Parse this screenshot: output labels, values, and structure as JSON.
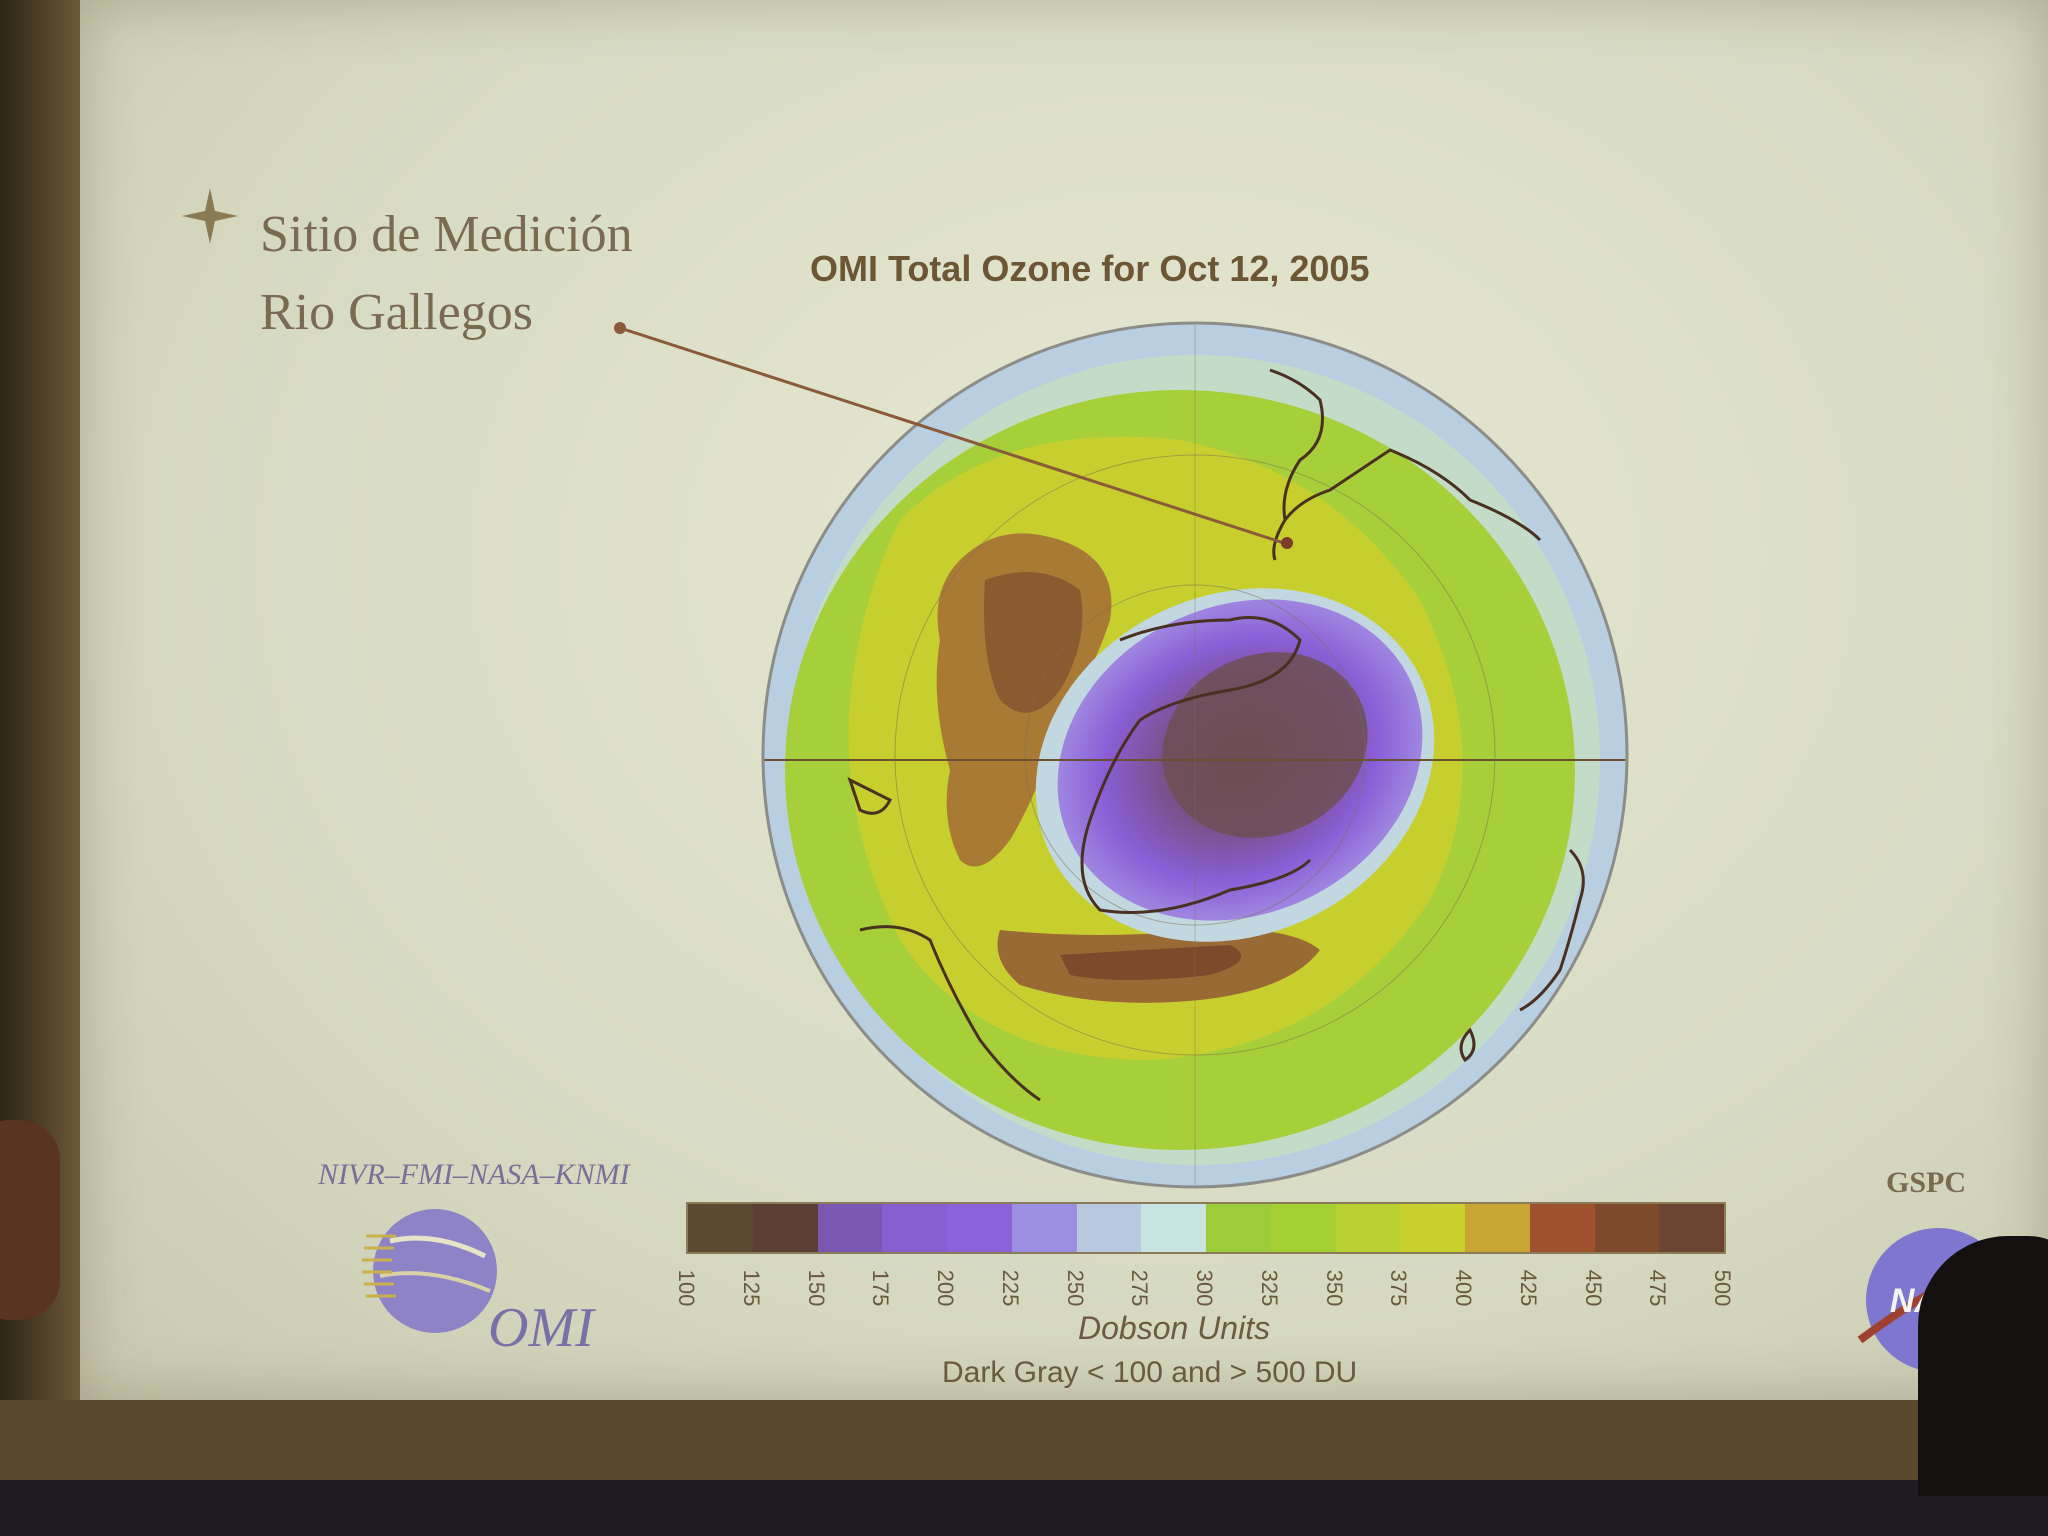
{
  "site": {
    "line1": "Sitio de Medición",
    "line2": "Rio Gallegos"
  },
  "map": {
    "title": "OMI Total Ozone for Oct 12, 2005"
  },
  "legend": {
    "partners": "NIVR–FMI–NASA–KNMI",
    "omi_word": "OMI",
    "ticks": [
      "100",
      "125",
      "150",
      "175",
      "200",
      "225",
      "250",
      "275",
      "300",
      "325",
      "350",
      "375",
      "400",
      "425",
      "450",
      "475",
      "500"
    ],
    "colors": [
      "#5b4a31",
      "#5e3f35",
      "#7a57b0",
      "#8a5ed0",
      "#8d62d8",
      "#9c8ee0",
      "#b8c8de",
      "#c8e4e0",
      "#9ccc3a",
      "#a4d034",
      "#b9d232",
      "#c9d02c",
      "#c9a634",
      "#a0522e",
      "#7e4a2c",
      "#6a4430"
    ],
    "units": "Dobson Units",
    "note": "Dark Gray < 100 and > 500 DU"
  },
  "agency": {
    "label": "GSPC",
    "logo_text": "NASA"
  }
}
